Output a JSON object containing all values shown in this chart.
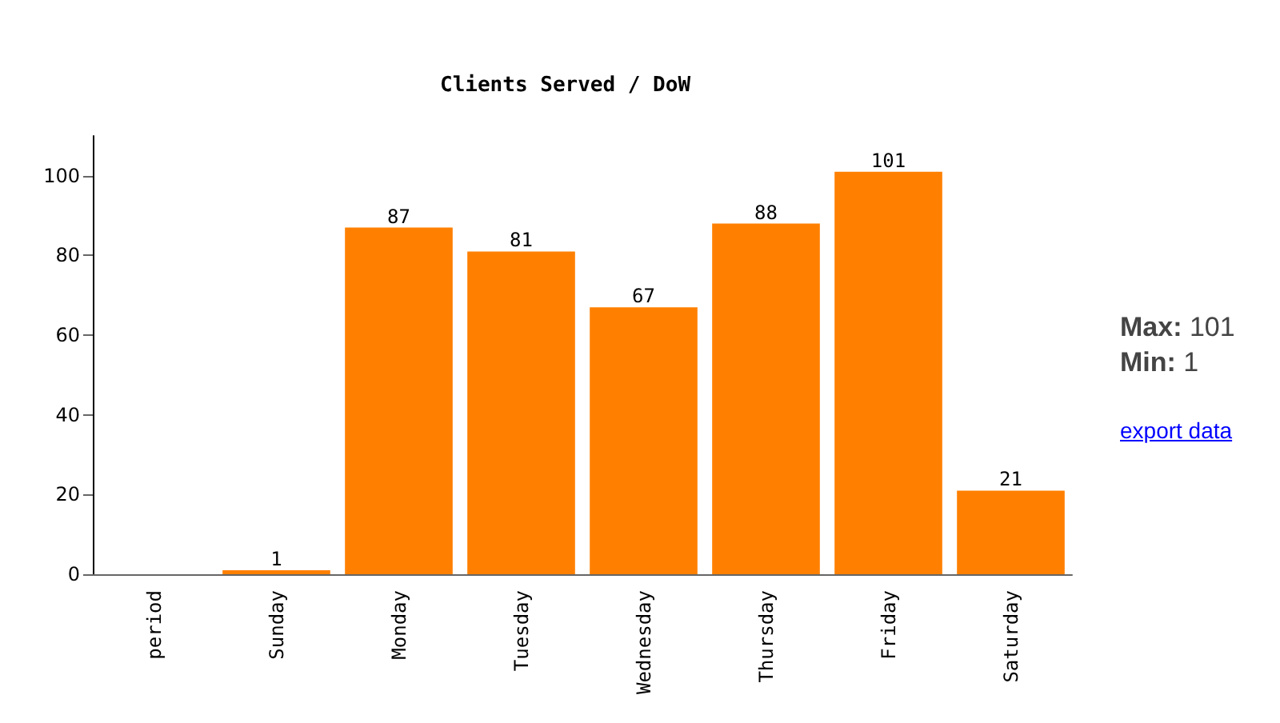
{
  "chart_data": {
    "type": "bar",
    "title": "Clients Served / DoW",
    "categories": [
      "period",
      "Sunday",
      "Monday",
      "Tuesday",
      "Wednesday",
      "Thursday",
      "Friday",
      "Saturday"
    ],
    "values": [
      null,
      1,
      87,
      81,
      67,
      88,
      101,
      21
    ],
    "color": "#ff8000",
    "ylim": [
      0,
      110
    ],
    "yticks": [
      0,
      20,
      40,
      60,
      80,
      100
    ],
    "grid": false,
    "data_labels": true,
    "annotations": [
      "Max: 101",
      "Min: 1",
      "export data"
    ]
  }
}
